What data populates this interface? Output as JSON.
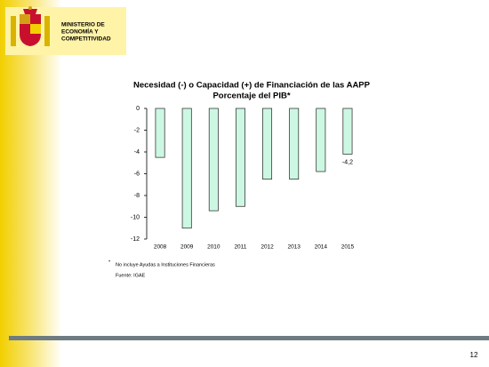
{
  "header": {
    "lines": [
      "MINISTERIO DE",
      "ECONOMÍA Y",
      "COMPETITIVIDAD"
    ]
  },
  "chart_data": {
    "type": "bar",
    "title": "Necesidad (-) o Capacidad (+) de Financiación de las AAPP",
    "subtitle": "Porcentaje del PIB*",
    "categories": [
      "2008",
      "2009",
      "2010",
      "2011",
      "2012",
      "2013",
      "2014",
      "2015"
    ],
    "values": [
      -4.5,
      -11.0,
      -9.4,
      -9.0,
      -6.5,
      -6.5,
      -5.8,
      -4.2
    ],
    "value_labels": [
      null,
      null,
      null,
      null,
      null,
      null,
      null,
      "-4,2"
    ],
    "color": "#ccf7e3",
    "ylim": [
      -12,
      0
    ],
    "yticks": [
      0,
      -2,
      -4,
      -6,
      -8,
      -10,
      -12
    ],
    "footnote_marker": "*",
    "footnote": "No incluye Ayudas a Instituciones Financieras",
    "source": "Fuente: IGAE"
  },
  "footer": {
    "page_number": "12"
  }
}
